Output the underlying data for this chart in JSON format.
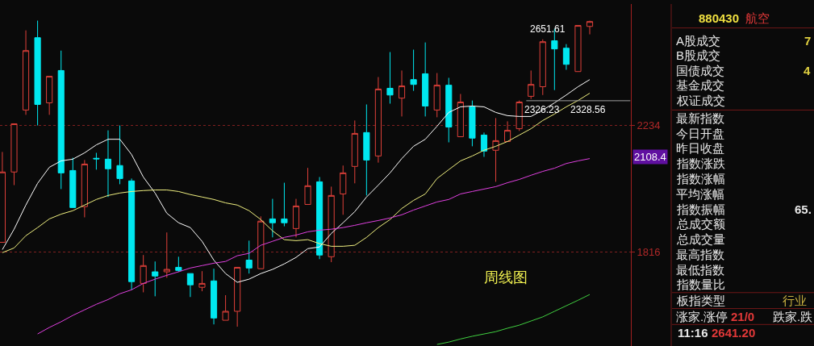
{
  "chart_data": [
    {
      "type": "candlestick",
      "categories": [
        null,
        null,
        null,
        null,
        null,
        null,
        null,
        null,
        null,
        null,
        null,
        null,
        null,
        null,
        null,
        null,
        null,
        null,
        null,
        null,
        null,
        null,
        null,
        null,
        null,
        null,
        null,
        null,
        null,
        null,
        null,
        null,
        null,
        null,
        null,
        null,
        null,
        null,
        null,
        null,
        null,
        null,
        null,
        null,
        null,
        null,
        null,
        null,
        null,
        null,
        null
      ],
      "ohlc": [
        [
          1845,
          2139,
          1845,
          2070
        ],
        [
          2070,
          2240,
          2026,
          2240
        ],
        [
          2291,
          2610,
          2273,
          2525
        ],
        [
          2579,
          2652,
          2234,
          2312
        ],
        [
          2318,
          2421,
          2273,
          2421
        ],
        [
          2444,
          2525,
          2013,
          2067
        ],
        [
          2075,
          2119,
          1953,
          1953
        ],
        [
          1956,
          2111,
          1922,
          2097
        ],
        [
          2117,
          2136,
          2078,
          2115
        ],
        [
          2114,
          2216,
          1987,
          2081
        ],
        [
          2092,
          2234,
          2029,
          2048
        ],
        [
          2040,
          2048,
          1707,
          1730
        ],
        [
          1725,
          1807,
          1700,
          1776
        ],
        [
          1758,
          1788,
          1689,
          1746
        ],
        [
          1758,
          1875,
          1741,
          1765
        ],
        [
          1771,
          1802,
          1758,
          1762
        ],
        [
          1753,
          1753,
          1687,
          1721
        ],
        [
          1714,
          1760,
          1703,
          1725
        ],
        [
          1732,
          1767,
          1613,
          1630
        ],
        [
          1624,
          1692,
          1624,
          1648
        ],
        [
          1648,
          1771,
          1607,
          1771
        ],
        [
          1792,
          1850,
          1753,
          1769
        ],
        [
          1767,
          1925,
          1767,
          1910
        ],
        [
          1917,
          1981,
          1860,
          1905
        ],
        [
          1917,
          2034,
          1894,
          1905
        ],
        [
          1887,
          1981,
          1860,
          1958
        ],
        [
          1963,
          2084,
          1963,
          2024
        ],
        [
          2037,
          2053,
          1795,
          1807
        ],
        [
          1802,
          2021,
          1786,
          1992
        ],
        [
          1997,
          2092,
          1930,
          2067
        ],
        [
          2089,
          2252,
          2032,
          2205
        ],
        [
          2208,
          2312,
          1992,
          2111
        ],
        [
          2125,
          2418,
          2102,
          2371
        ],
        [
          2374,
          2519,
          2315,
          2348
        ],
        [
          2336,
          2444,
          2267,
          2383
        ],
        [
          2408,
          2529,
          2364,
          2389
        ],
        [
          2431,
          2559,
          2267,
          2306
        ],
        [
          2291,
          2434,
          2264,
          2386
        ],
        [
          2386,
          2415,
          2173,
          2228
        ],
        [
          2193,
          2352,
          2193,
          2321
        ],
        [
          2303,
          2327,
          2159,
          2188
        ],
        [
          2199,
          2208,
          2122,
          2142
        ],
        [
          2145,
          2261,
          2037,
          2179
        ],
        [
          2176,
          2249,
          2176,
          2216
        ],
        [
          2222,
          2327,
          2214,
          2321
        ],
        [
          2343,
          2444,
          2333,
          2389
        ],
        [
          2380,
          2572,
          2348,
          2562
        ],
        [
          2566,
          2617,
          2367,
          2532
        ],
        [
          2535,
          2552,
          2447,
          2469
        ],
        [
          2440,
          2631,
          2440,
          2631
        ],
        [
          2627,
          2651.61,
          2593,
          2648
        ]
      ],
      "series": [
        {
          "type": "line",
          "color": "#ffffff",
          "values": [
            1823,
            1885,
            1961,
            2032,
            2086,
            2108,
            2114,
            2136,
            2164,
            2184,
            2184,
            2130,
            2053,
            2000,
            1935,
            1905,
            1890,
            1848,
            1792,
            1753,
            1728,
            1737,
            1753,
            1765,
            1781,
            1800,
            1826,
            1831,
            1872,
            1905,
            1940,
            1987,
            2026,
            2067,
            2116,
            2159,
            2184,
            2231,
            2282,
            2303,
            2306,
            2303,
            2282,
            2270,
            2267,
            2267,
            2291,
            2318,
            2348,
            2380,
            2408
          ]
        },
        {
          "type": "line",
          "color": "#f0f080",
          "values": [
            1814,
            1828,
            1865,
            1890,
            1917,
            1932,
            1943,
            1961,
            1979,
            1992,
            2000,
            2005,
            2008,
            2010,
            2010,
            2005,
            1995,
            1987,
            1979,
            1968,
            1961,
            1943,
            1915,
            1880,
            1853,
            1850,
            1853,
            1841,
            1833,
            1833,
            1836,
            1860,
            1890,
            1915,
            1950,
            1976,
            1997,
            2048,
            2078,
            2108,
            2125,
            2145,
            2159,
            2176,
            2199,
            2222,
            2252,
            2276,
            2303,
            2327,
            2355
          ]
        },
        {
          "type": "line",
          "color": "#e040e0",
          "values": [
            null,
            null,
            null,
            1588,
            1605,
            1620,
            1637,
            1652,
            1667,
            1680,
            1696,
            1707,
            1725,
            1737,
            1748,
            1758,
            1769,
            1776,
            1783,
            1788,
            1805,
            1812,
            1836,
            1848,
            1860,
            1867,
            1877,
            1882,
            1885,
            1890,
            1897,
            1905,
            1912,
            1920,
            1930,
            1945,
            1958,
            1971,
            1979,
            1997,
            2005,
            2013,
            2021,
            2034,
            2045,
            2059,
            2072,
            2083,
            2099,
            2108,
            2116
          ]
        },
        {
          "type": "line",
          "color": "#40d040",
          "values": [
            null,
            null,
            null,
            null,
            null,
            null,
            null,
            null,
            null,
            null,
            null,
            null,
            null,
            null,
            null,
            null,
            null,
            null,
            null,
            null,
            null,
            null,
            null,
            null,
            null,
            null,
            null,
            null,
            null,
            null,
            null,
            null,
            null,
            null,
            null,
            null,
            null,
            1561,
            1567,
            1575,
            1582,
            1588,
            1594,
            1603,
            1611,
            1622,
            1633,
            1648,
            1663,
            1678,
            1694
          ]
        }
      ],
      "ylim": [
        1557,
        2725
      ],
      "yticks": [
        2234,
        1816
      ],
      "log": true,
      "grid": "y",
      "tick_labels": "y",
      "ref_lines": [
        {
          "axis": "y",
          "value": 2326.23,
          "color": "#a0a0a0"
        }
      ],
      "annotations": [
        "2651.61",
        "2326.23",
        "2328.56",
        "周线图",
        "2108.4"
      ]
    },
    {
      "type": "other",
      "annotations": [
        "880430",
        "航空",
        "A股成交",
        "7",
        "B股成交",
        "国债成交",
        "4",
        "基金成交",
        "权证成交",
        "最新指数",
        "今日开盘",
        "昨日收盘",
        "指数涨跌",
        "指数涨幅",
        "平均涨幅",
        "指数振幅",
        "65.",
        "总成交额",
        "总成交量",
        "最高指数",
        "最低指数",
        "指数量比",
        "板指类型",
        "行业",
        "涨家.涨停",
        "21/0",
        "跌家.跌",
        "11:16",
        "2641.20"
      ]
    }
  ]
}
